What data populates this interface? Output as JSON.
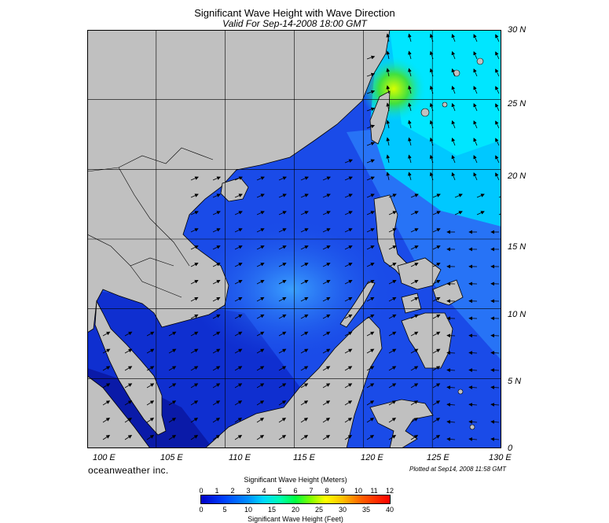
{
  "title": "Significant Wave Height with Wave Direction",
  "subtitle": "Valid For Sep-14-2008 18:00 GMT",
  "lat_labels": [
    "30 N",
    "25 N",
    "20 N",
    "15 N",
    "10 N",
    "5 N",
    "0"
  ],
  "lon_labels": [
    "100 E",
    "105 E",
    "110 E",
    "115 E",
    "120 E",
    "125 E",
    "130 E"
  ],
  "brand": "oceanweather inc.",
  "plotted": "Plotted at Sep14, 2008 11:58 GMT",
  "scale": {
    "title_top": "Significant Wave Height (Meters)",
    "title_bottom": "Significant Wave Height (Feet)",
    "meters": [
      "0",
      "1",
      "2",
      "3",
      "4",
      "5",
      "6",
      "7",
      "8",
      "9",
      "10",
      "11",
      "12"
    ],
    "feet": [
      "0",
      "5",
      "10",
      "15",
      "20",
      "25",
      "30",
      "35",
      "40"
    ]
  },
  "colors": {
    "land": "#c0c0c0",
    "deep_blue": "#0a1aa8",
    "mid_blue": "#1a4be8",
    "light_blue": "#3aa0ff",
    "cyan": "#00e0ff",
    "green": "#40e040",
    "yellow": "#d8ff00"
  },
  "map_extent": {
    "lon": [
      100,
      130
    ],
    "lat": [
      0,
      30
    ]
  }
}
